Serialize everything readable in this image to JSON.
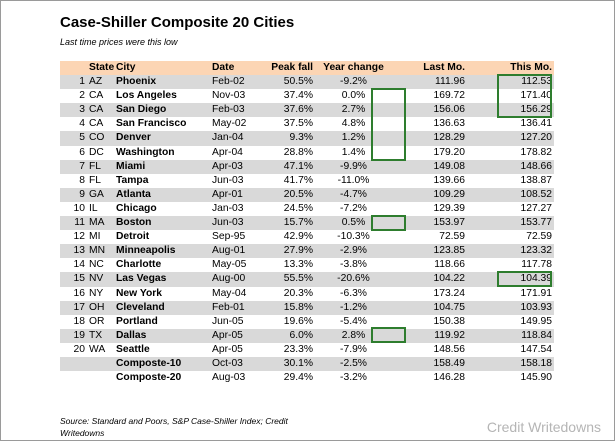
{
  "title": "Case-Shiller Composite 20 Cities",
  "subtitle": "Last time prices were this low",
  "headers": [
    "State",
    "City",
    "Date",
    "Peak fall",
    "Year change",
    "Last Mo.",
    "This Mo."
  ],
  "rows": [
    {
      "num": "1",
      "state": "AZ",
      "city": "Phoenix",
      "date": "Feb-02",
      "peak": "50.5%",
      "yr": "-9.2%",
      "last": "111.96",
      "this": "112.53"
    },
    {
      "num": "2",
      "state": "CA",
      "city": "Los Angeles",
      "date": "Nov-03",
      "peak": "37.4%",
      "yr": "0.0%",
      "last": "169.72",
      "this": "171.40"
    },
    {
      "num": "3",
      "state": "CA",
      "city": "San Diego",
      "date": "Feb-03",
      "peak": "37.6%",
      "yr": "2.7%",
      "last": "156.06",
      "this": "156.29"
    },
    {
      "num": "4",
      "state": "CA",
      "city": "San Francisco",
      "date": "May-02",
      "peak": "37.5%",
      "yr": "4.8%",
      "last": "136.63",
      "this": "136.41"
    },
    {
      "num": "5",
      "state": "CO",
      "city": "Denver",
      "date": "Jan-04",
      "peak": "9.3%",
      "yr": "1.2%",
      "last": "128.29",
      "this": "127.20"
    },
    {
      "num": "6",
      "state": "DC",
      "city": "Washington",
      "date": "Apr-04",
      "peak": "28.8%",
      "yr": "1.4%",
      "last": "179.20",
      "this": "178.82"
    },
    {
      "num": "7",
      "state": "FL",
      "city": "Miami",
      "date": "Apr-03",
      "peak": "47.1%",
      "yr": "-9.9%",
      "last": "149.08",
      "this": "148.66"
    },
    {
      "num": "8",
      "state": "FL",
      "city": "Tampa",
      "date": "Jun-03",
      "peak": "41.7%",
      "yr": "-11.0%",
      "last": "139.66",
      "this": "138.87"
    },
    {
      "num": "9",
      "state": "GA",
      "city": "Atlanta",
      "date": "Apr-01",
      "peak": "20.5%",
      "yr": "-4.7%",
      "last": "109.29",
      "this": "108.52"
    },
    {
      "num": "10",
      "state": "IL",
      "city": "Chicago",
      "date": "Jan-03",
      "peak": "24.5%",
      "yr": "-7.2%",
      "last": "129.39",
      "this": "127.27"
    },
    {
      "num": "11",
      "state": "MA",
      "city": "Boston",
      "date": "Jun-03",
      "peak": "15.7%",
      "yr": "0.5%",
      "last": "153.97",
      "this": "153.77"
    },
    {
      "num": "12",
      "state": "MI",
      "city": "Detroit",
      "date": "Sep-95",
      "peak": "42.9%",
      "yr": "-10.3%",
      "last": "72.59",
      "this": "72.59"
    },
    {
      "num": "13",
      "state": "MN",
      "city": "Minneapolis",
      "date": "Aug-01",
      "peak": "27.9%",
      "yr": "-2.9%",
      "last": "123.85",
      "this": "123.32"
    },
    {
      "num": "14",
      "state": "NC",
      "city": "Charlotte",
      "date": "May-05",
      "peak": "13.3%",
      "yr": "-3.8%",
      "last": "118.66",
      "this": "117.78"
    },
    {
      "num": "15",
      "state": "NV",
      "city": "Las Vegas",
      "date": "Aug-00",
      "peak": "55.5%",
      "yr": "-20.6%",
      "last": "104.22",
      "this": "104.39"
    },
    {
      "num": "16",
      "state": "NY",
      "city": "New York",
      "date": "May-04",
      "peak": "20.3%",
      "yr": "-6.3%",
      "last": "173.24",
      "this": "171.91"
    },
    {
      "num": "17",
      "state": "OH",
      "city": "Cleveland",
      "date": "Feb-01",
      "peak": "15.8%",
      "yr": "-1.2%",
      "last": "104.75",
      "this": "103.93"
    },
    {
      "num": "18",
      "state": "OR",
      "city": "Portland",
      "date": "Jun-05",
      "peak": "19.6%",
      "yr": "-5.4%",
      "last": "150.38",
      "this": "149.95"
    },
    {
      "num": "19",
      "state": "TX",
      "city": "Dallas",
      "date": "Apr-05",
      "peak": "6.0%",
      "yr": "2.8%",
      "last": "119.92",
      "this": "118.84"
    },
    {
      "num": "20",
      "state": "WA",
      "city": "Seattle",
      "date": "Apr-05",
      "peak": "23.3%",
      "yr": "-7.9%",
      "last": "148.56",
      "this": "147.54"
    },
    {
      "num": "",
      "state": "",
      "city": "Composte-10",
      "date": "Oct-03",
      "peak": "30.1%",
      "yr": "-2.5%",
      "last": "158.49",
      "this": "158.18"
    },
    {
      "num": "",
      "state": "",
      "city": "Composte-20",
      "date": "Aug-03",
      "peak": "29.4%",
      "yr": "-3.2%",
      "last": "146.28",
      "this": "145.90"
    }
  ],
  "source": "Source: Standard and Poors, S&P Case-Shiller Index; Credit Writedowns",
  "watermark": "Credit Writedowns",
  "highlight_color": "#2e7d2e"
}
